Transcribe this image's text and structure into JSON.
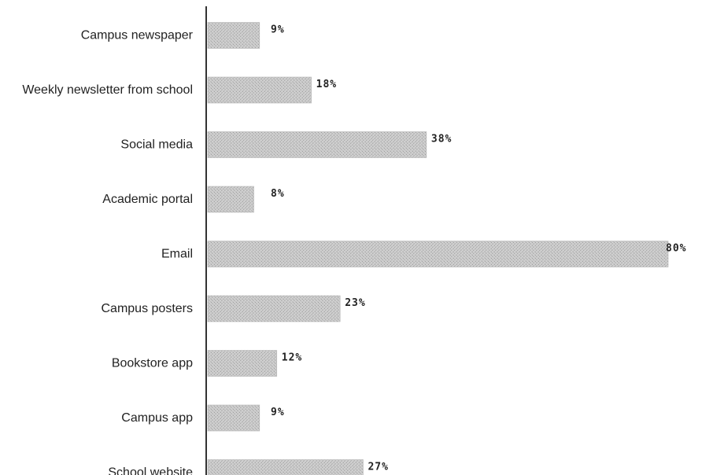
{
  "chart_data": {
    "type": "bar",
    "orientation": "horizontal",
    "categories": [
      "Campus newspaper",
      "Weekly newsletter from school",
      "Social media",
      "Academic portal",
      "Email",
      "Campus posters",
      "Bookstore app",
      "Campus app",
      "School website"
    ],
    "values": [
      9,
      18,
      38,
      8,
      80,
      23,
      12,
      9,
      27
    ],
    "value_labels": [
      "9%",
      "18%",
      "38%",
      "8%",
      "80%",
      "23%",
      "12%",
      "9%",
      "27%"
    ],
    "xlim": [
      0,
      80
    ],
    "grid": false,
    "colors": {
      "bar_fill": "#c8c8c8",
      "bar_texture": "#a9a9a9",
      "axis": "#333333"
    }
  }
}
